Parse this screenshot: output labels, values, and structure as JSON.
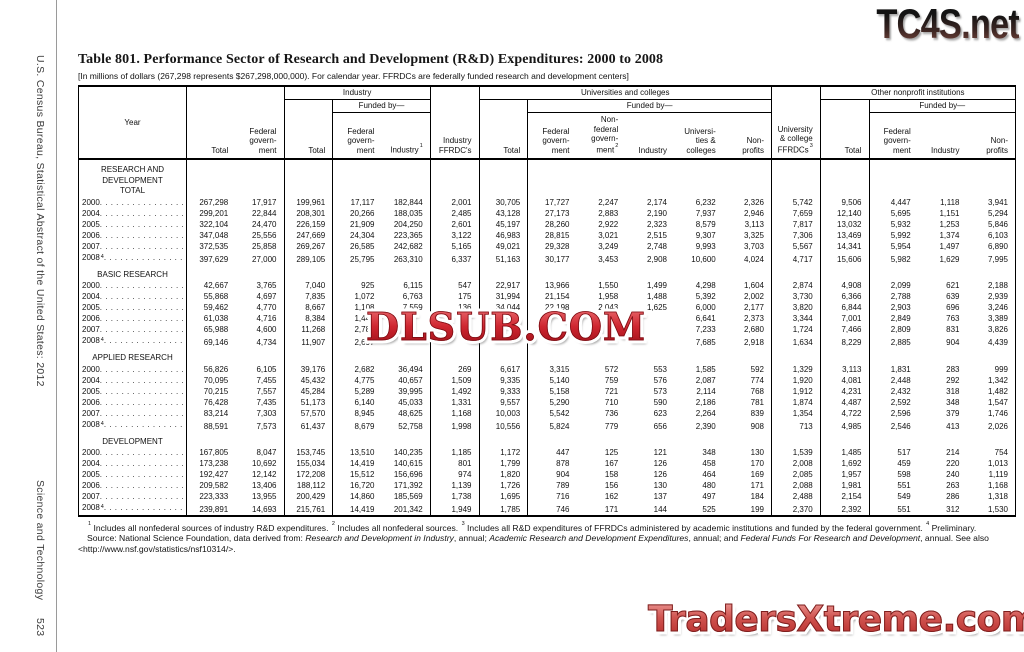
{
  "sidebar": {
    "source_line": "U.S. Census Bureau, Statistical Abstract of the United States: 2012",
    "section_line": "Science and Technology",
    "page_number": "523"
  },
  "title": "Table 801. Performance Sector of Research and Development (R&D) Expenditures: 2000 to 2008",
  "subtitle": "[In millions of dollars (267,298 represents $267,298,000,000). For calendar year. FFRDCs are federally funded research and development centers]",
  "header": {
    "year": "Year",
    "total": "Total",
    "fed_gov": "Federal\ngovern-\nment",
    "group_industry": "Industry",
    "group_universities": "Universities and colleges",
    "group_other": "Other nonprofit institutions",
    "funded_by": "Funded by—",
    "industry": "Industry",
    "industry_sup": "1",
    "industry_ffrdcs": "Industry\nFFRDC's",
    "nonfed_gov": "Non-\nfederal\ngovern-\nment",
    "nonfed_gov_sup": "2",
    "univ_colleges": "Universi-\nties &\ncolleges",
    "nonprofits": "Non-\nprofits",
    "uc_ffrdcs": "University\n& college\nFFRDCs",
    "uc_ffrdcs_sup": "3"
  },
  "table": {
    "sections": [
      {
        "label": "RESEARCH AND\nDEVELOPMENT\nTOTAL",
        "tall": true,
        "rows": [
          {
            "year": "2000",
            "sup": "",
            "values": [
              "267,298",
              "17,917",
              "199,961",
              "17,117",
              "182,844",
              "2,001",
              "30,705",
              "17,727",
              "2,247",
              "2,174",
              "6,232",
              "2,326",
              "5,742",
              "9,506",
              "4,447",
              "1,118",
              "3,941"
            ]
          },
          {
            "year": "2004",
            "sup": "",
            "values": [
              "299,201",
              "22,844",
              "208,301",
              "20,266",
              "188,035",
              "2,485",
              "43,128",
              "27,173",
              "2,883",
              "2,190",
              "7,937",
              "2,946",
              "7,659",
              "12,140",
              "5,695",
              "1,151",
              "5,294"
            ]
          },
          {
            "year": "2005",
            "sup": "",
            "values": [
              "322,104",
              "24,470",
              "226,159",
              "21,909",
              "204,250",
              "2,601",
              "45,197",
              "28,260",
              "2,922",
              "2,323",
              "8,579",
              "3,113",
              "7,817",
              "13,032",
              "5,932",
              "1,253",
              "5,846"
            ]
          },
          {
            "year": "2006",
            "sup": "",
            "values": [
              "347,048",
              "25,556",
              "247,669",
              "24,304",
              "223,365",
              "3,122",
              "46,983",
              "28,815",
              "3,021",
              "2,515",
              "9,307",
              "3,325",
              "7,306",
              "13,469",
              "5,992",
              "1,374",
              "6,103"
            ]
          },
          {
            "year": "2007",
            "sup": "",
            "values": [
              "372,535",
              "25,858",
              "269,267",
              "26,585",
              "242,682",
              "5,165",
              "49,021",
              "29,328",
              "3,249",
              "2,748",
              "9,993",
              "3,703",
              "5,567",
              "14,341",
              "5,954",
              "1,497",
              "6,890"
            ]
          },
          {
            "year": "2008",
            "sup": "4",
            "values": [
              "397,629",
              "27,000",
              "289,105",
              "25,795",
              "263,310",
              "6,337",
              "51,163",
              "30,177",
              "3,453",
              "2,908",
              "10,600",
              "4,024",
              "4,717",
              "15,606",
              "5,982",
              "1,629",
              "7,995"
            ]
          }
        ]
      },
      {
        "label": "BASIC RESEARCH",
        "tall": false,
        "rows": [
          {
            "year": "2000",
            "sup": "",
            "values": [
              "42,667",
              "3,765",
              "7,040",
              "925",
              "6,115",
              "547",
              "22,917",
              "13,966",
              "1,550",
              "1,499",
              "4,298",
              "1,604",
              "2,874",
              "4,908",
              "2,099",
              "621",
              "2,188"
            ]
          },
          {
            "year": "2004",
            "sup": "",
            "values": [
              "55,868",
              "4,697",
              "7,835",
              "1,072",
              "6,763",
              "175",
              "31,994",
              "21,154",
              "1,958",
              "1,488",
              "5,392",
              "2,002",
              "3,730",
              "6,366",
              "2,788",
              "639",
              "2,939"
            ]
          },
          {
            "year": "2005",
            "sup": "",
            "values": [
              "59,462",
              "4,770",
              "8,667",
              "1,108",
              "7,559",
              "136",
              "34,044",
              "22,198",
              "2,043",
              "1,625",
              "6,000",
              "2,177",
              "3,820",
              "6,844",
              "2,903",
              "696",
              "3,246"
            ]
          },
          {
            "year": "2006",
            "sup": "",
            "values": [
              "61,038",
              "4,716",
              "8,384",
              "1,444",
              "",
              "",
              "",
              "",
              "",
              "",
              "6,641",
              "2,373",
              "3,344",
              "7,001",
              "2,849",
              "763",
              "3,389"
            ]
          },
          {
            "year": "2007",
            "sup": "",
            "values": [
              "65,988",
              "4,600",
              "11,268",
              "2,780",
              "",
              "",
              "",
              "",
              "",
              "",
              "7,233",
              "2,680",
              "1,724",
              "7,466",
              "2,809",
              "831",
              "3,826"
            ]
          },
          {
            "year": "2008",
            "sup": "4",
            "values": [
              "69,146",
              "4,734",
              "11,907",
              "2,697",
              "",
              "",
              "",
              "",
              "",
              "",
              "7,685",
              "2,918",
              "1,634",
              "8,229",
              "2,885",
              "904",
              "4,439"
            ]
          }
        ]
      },
      {
        "label": "APPLIED RESEARCH",
        "tall": false,
        "rows": [
          {
            "year": "2000",
            "sup": "",
            "values": [
              "56,826",
              "6,105",
              "39,176",
              "2,682",
              "36,494",
              "269",
              "6,617",
              "3,315",
              "572",
              "553",
              "1,585",
              "592",
              "1,329",
              "3,113",
              "1,831",
              "283",
              "999"
            ]
          },
          {
            "year": "2004",
            "sup": "",
            "values": [
              "70,095",
              "7,455",
              "45,432",
              "4,775",
              "40,657",
              "1,509",
              "9,335",
              "5,140",
              "759",
              "576",
              "2,087",
              "774",
              "1,920",
              "4,081",
              "2,448",
              "292",
              "1,342"
            ]
          },
          {
            "year": "2005",
            "sup": "",
            "values": [
              "70,215",
              "7,557",
              "45,284",
              "5,289",
              "39,995",
              "1,492",
              "9,333",
              "5,158",
              "721",
              "573",
              "2,114",
              "768",
              "1,912",
              "4,231",
              "2,432",
              "318",
              "1,482"
            ]
          },
          {
            "year": "2006",
            "sup": "",
            "values": [
              "76,428",
              "7,435",
              "51,173",
              "6,140",
              "45,033",
              "1,331",
              "9,557",
              "5,290",
              "710",
              "590",
              "2,186",
              "781",
              "1,874",
              "4,487",
              "2,592",
              "348",
              "1,547"
            ]
          },
          {
            "year": "2007",
            "sup": "",
            "values": [
              "83,214",
              "7,303",
              "57,570",
              "8,945",
              "48,625",
              "1,168",
              "10,003",
              "5,542",
              "736",
              "623",
              "2,264",
              "839",
              "1,354",
              "4,722",
              "2,596",
              "379",
              "1,746"
            ]
          },
          {
            "year": "2008",
            "sup": "4",
            "values": [
              "88,591",
              "7,573",
              "61,437",
              "8,679",
              "52,758",
              "1,998",
              "10,556",
              "5,824",
              "779",
              "656",
              "2,390",
              "908",
              "713",
              "4,985",
              "2,546",
              "413",
              "2,026"
            ]
          }
        ]
      },
      {
        "label": "DEVELOPMENT",
        "tall": false,
        "rows": [
          {
            "year": "2000",
            "sup": "",
            "values": [
              "167,805",
              "8,047",
              "153,745",
              "13,510",
              "140,235",
              "1,185",
              "1,172",
              "447",
              "125",
              "121",
              "348",
              "130",
              "1,539",
              "1,485",
              "517",
              "214",
              "754"
            ]
          },
          {
            "year": "2004",
            "sup": "",
            "values": [
              "173,238",
              "10,692",
              "155,034",
              "14,419",
              "140,615",
              "801",
              "1,799",
              "878",
              "167",
              "126",
              "458",
              "170",
              "2,008",
              "1,692",
              "459",
              "220",
              "1,013"
            ]
          },
          {
            "year": "2005",
            "sup": "",
            "values": [
              "192,427",
              "12,142",
              "172,208",
              "15,512",
              "156,696",
              "974",
              "1,820",
              "904",
              "158",
              "126",
              "464",
              "169",
              "2,085",
              "1,957",
              "598",
              "240",
              "1,119"
            ]
          },
          {
            "year": "2006",
            "sup": "",
            "values": [
              "209,582",
              "13,406",
              "188,112",
              "16,720",
              "171,392",
              "1,139",
              "1,726",
              "789",
              "156",
              "130",
              "480",
              "171",
              "2,088",
              "1,981",
              "551",
              "263",
              "1,168"
            ]
          },
          {
            "year": "2007",
            "sup": "",
            "values": [
              "223,333",
              "13,955",
              "200,429",
              "14,860",
              "185,569",
              "1,738",
              "1,695",
              "716",
              "162",
              "137",
              "497",
              "184",
              "2,488",
              "2,154",
              "549",
              "286",
              "1,318"
            ]
          },
          {
            "year": "2008",
            "sup": "4",
            "values": [
              "239,891",
              "14,693",
              "215,761",
              "14,419",
              "201,342",
              "1,949",
              "1,785",
              "746",
              "171",
              "144",
              "525",
              "199",
              "2,370",
              "2,392",
              "551",
              "312",
              "1,530"
            ]
          }
        ]
      }
    ]
  },
  "footnotes": {
    "notes_segments": [
      {
        "sup": "1"
      },
      {
        "text": " Includes all nonfederal sources of industry R&D expenditures. "
      },
      {
        "sup": "2"
      },
      {
        "text": " Includes all nonfederal sources. "
      },
      {
        "sup": "3"
      },
      {
        "text": " Includes all R&D expenditures of FFRDCs administered by academic institutions and funded by the federal government. "
      },
      {
        "sup": "4"
      },
      {
        "text": " Preliminary."
      }
    ],
    "source_segments": [
      {
        "text": "Source: National Science Foundation, data derived from: "
      },
      {
        "text": "Research and Development in Industry",
        "italic": true
      },
      {
        "text": ", annual; "
      },
      {
        "text": "Academic Research and Development Expenditures",
        "italic": true
      },
      {
        "text": ", annual; and "
      },
      {
        "text": "Federal Funds For Research and Development",
        "italic": true
      },
      {
        "text": ", annual. See also <http://www.nsf.gov/statistics/nsf10314/>."
      }
    ]
  },
  "watermarks": {
    "top_right": "TC4S.net",
    "center": "DLSUB.COM",
    "bottom_right": "TradersXtreme.com",
    "red_color": "#cf2630",
    "dark_color": "#1b1b1b"
  }
}
